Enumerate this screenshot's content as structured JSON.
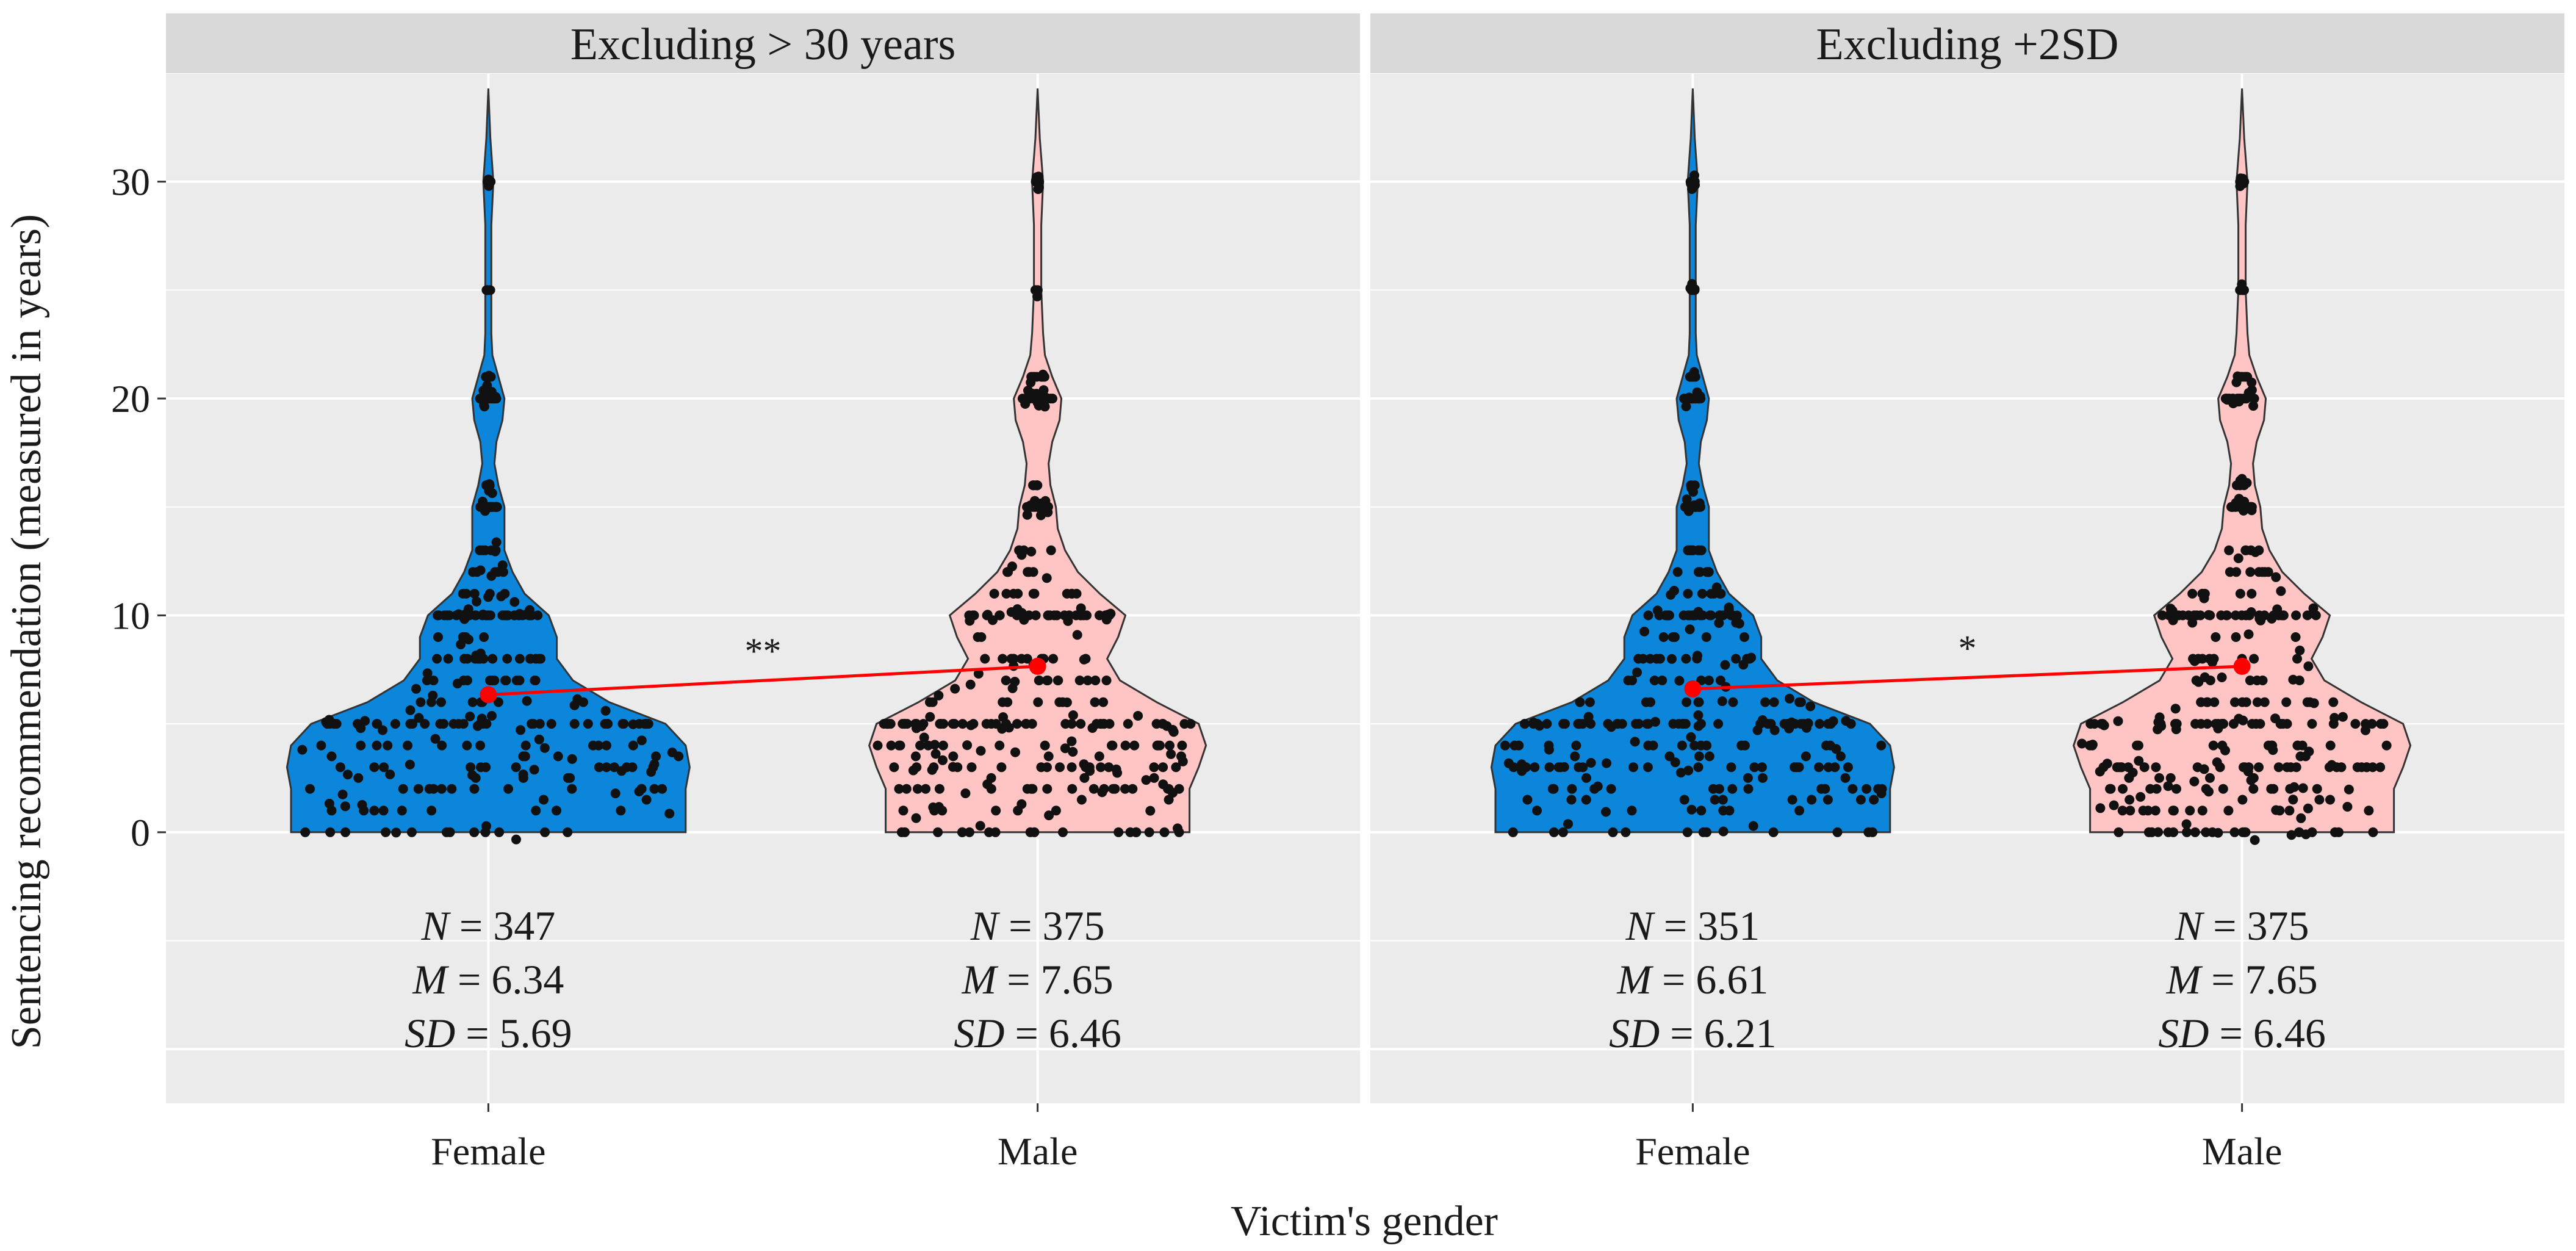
{
  "chart_data": {
    "type": "violin",
    "ylabel": "Sentencing recommendation (measured in years)",
    "xlabel": "Victim's gender",
    "categories": [
      "Female",
      "Male"
    ],
    "yticks": [
      0,
      10,
      20,
      30
    ],
    "ylim": [
      -12.5,
      35
    ],
    "grid": true,
    "colors": {
      "Female": "#0B86DB",
      "Male": "#FFC4C4",
      "mean": "#FF0000",
      "points": "#111111",
      "panel_bg": "#EBEBEB",
      "strip_bg": "#D9D9D9"
    },
    "panels": [
      {
        "title": "Excluding > 30 years",
        "significance": "**",
        "groups": [
          {
            "category": "Female",
            "N": "347",
            "M": "6.34",
            "SD": "5.69",
            "mean": 6.34
          },
          {
            "category": "Male",
            "N": "375",
            "M": "7.65",
            "SD": "6.46",
            "mean": 7.65
          }
        ]
      },
      {
        "title": "Excluding +2SD",
        "significance": "*",
        "groups": [
          {
            "category": "Female",
            "N": "351",
            "M": "6.61",
            "SD": "6.21",
            "mean": 6.61
          },
          {
            "category": "Male",
            "N": "375",
            "M": "7.65",
            "SD": "6.46",
            "mean": 7.65
          }
        ]
      }
    ],
    "stat_labels": {
      "N": "N",
      "M": "M",
      "SD": "SD",
      "eq": "= "
    },
    "violin_profiles": {
      "Female": [
        [
          0,
          0.98
        ],
        [
          2,
          0.98
        ],
        [
          3,
          1.0
        ],
        [
          4,
          0.98
        ],
        [
          5,
          0.88
        ],
        [
          6,
          0.6
        ],
        [
          7,
          0.42
        ],
        [
          8,
          0.34
        ],
        [
          9,
          0.34
        ],
        [
          10,
          0.3
        ],
        [
          11,
          0.18
        ],
        [
          12,
          0.12
        ],
        [
          13,
          0.08
        ],
        [
          14,
          0.08
        ],
        [
          15,
          0.08
        ],
        [
          16,
          0.05
        ],
        [
          17,
          0.03
        ],
        [
          18,
          0.04
        ],
        [
          19,
          0.07
        ],
        [
          20,
          0.08
        ],
        [
          21,
          0.05
        ],
        [
          22,
          0.02
        ],
        [
          23,
          0.015
        ],
        [
          25,
          0.015
        ],
        [
          28,
          0.015
        ],
        [
          30,
          0.025
        ],
        [
          32,
          0.01
        ],
        [
          34.3,
          0
        ]
      ],
      "Male": [
        [
          0,
          0.83
        ],
        [
          2,
          0.83
        ],
        [
          3,
          0.88
        ],
        [
          4,
          0.92
        ],
        [
          5,
          0.88
        ],
        [
          6,
          0.65
        ],
        [
          7,
          0.45
        ],
        [
          8,
          0.38
        ],
        [
          9,
          0.44
        ],
        [
          10,
          0.48
        ],
        [
          11,
          0.34
        ],
        [
          12,
          0.22
        ],
        [
          13,
          0.15
        ],
        [
          14,
          0.11
        ],
        [
          15,
          0.1
        ],
        [
          16,
          0.07
        ],
        [
          17,
          0.06
        ],
        [
          18,
          0.08
        ],
        [
          19,
          0.12
        ],
        [
          20,
          0.13
        ],
        [
          21,
          0.08
        ],
        [
          22,
          0.04
        ],
        [
          23,
          0.03
        ],
        [
          25,
          0.02
        ],
        [
          28,
          0.02
        ],
        [
          30,
          0.03
        ],
        [
          32,
          0.012
        ],
        [
          34.3,
          0
        ]
      ]
    }
  }
}
